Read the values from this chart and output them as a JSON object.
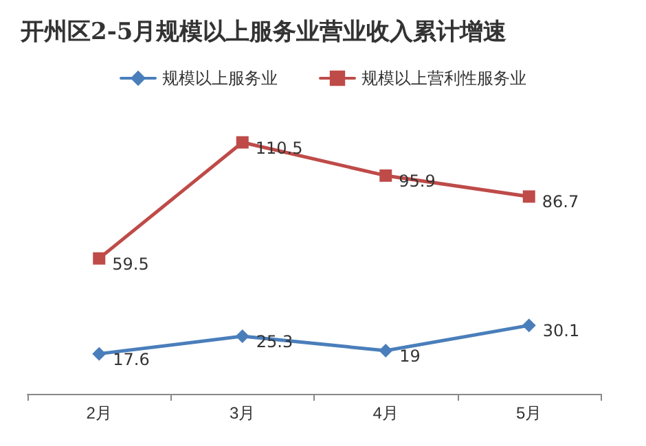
{
  "chart_data": {
    "type": "line",
    "title": "开州区2-5月规模以上服务业营业收入累计增速",
    "categories": [
      "2月",
      "3月",
      "4月",
      "5月"
    ],
    "series": [
      {
        "name": "规模以上服务业",
        "color": "#4a7ebb",
        "marker": "diamond",
        "values": [
          17.6,
          25.3,
          19,
          30.1
        ]
      },
      {
        "name": "规模以上营利性服务业",
        "color": "#be4b48",
        "marker": "square",
        "values": [
          59.5,
          110.5,
          95.9,
          86.7
        ]
      }
    ],
    "data_labels": true,
    "legend": "top",
    "grid": false,
    "line_style": "solid"
  }
}
